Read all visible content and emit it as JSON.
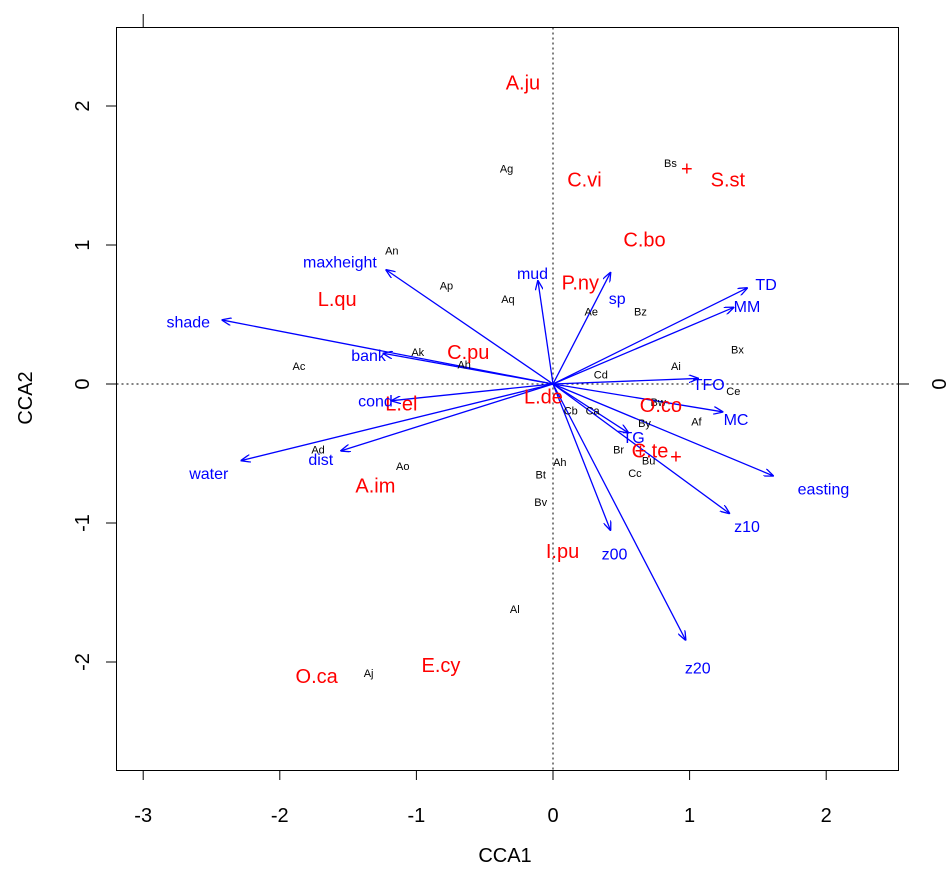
{
  "chart_data": {
    "type": "scatter",
    "subtype": "cca-triplot",
    "xlabel": "CCA1",
    "ylabel": "CCA2",
    "right_axis_tick": "0",
    "xlim": [
      -3.23,
      2.5
    ],
    "ylim": [
      -2.77,
      2.6
    ],
    "xticks": [
      -3,
      -2,
      -1,
      0,
      1,
      2
    ],
    "yticks": [
      -2,
      -1,
      0,
      1,
      2
    ],
    "zero_lines": true,
    "colors": {
      "sites": "#000000",
      "species": "#ff0000",
      "env": "#0000ff"
    },
    "sites": [
      {
        "label": "An",
        "x": -1.18,
        "y": 0.96
      },
      {
        "label": "Ap",
        "x": -0.78,
        "y": 0.71
      },
      {
        "label": "Aq",
        "x": -0.33,
        "y": 0.61
      },
      {
        "label": "Ag",
        "x": -0.34,
        "y": 1.55
      },
      {
        "label": "Bs",
        "x": 0.86,
        "y": 1.59
      },
      {
        "label": "Ae",
        "x": 0.28,
        "y": 0.52
      },
      {
        "label": "Bz",
        "x": 0.64,
        "y": 0.52
      },
      {
        "label": "Bx",
        "x": 1.35,
        "y": 0.25
      },
      {
        "label": "Ai",
        "x": 0.9,
        "y": 0.13
      },
      {
        "label": "Cd",
        "x": 0.35,
        "y": 0.07
      },
      {
        "label": "Ce",
        "x": 1.32,
        "y": -0.05
      },
      {
        "label": "Ac",
        "x": -1.86,
        "y": 0.13
      },
      {
        "label": "Ak",
        "x": -0.99,
        "y": 0.23
      },
      {
        "label": "Ah",
        "x": -0.65,
        "y": 0.14
      },
      {
        "label": "Cb",
        "x": 0.13,
        "y": -0.19
      },
      {
        "label": "Ca",
        "x": 0.29,
        "y": -0.19
      },
      {
        "label": "Bw",
        "x": 0.77,
        "y": -0.13
      },
      {
        "label": "Af",
        "x": 1.05,
        "y": -0.27
      },
      {
        "label": "By",
        "x": 0.67,
        "y": -0.28
      },
      {
        "label": "Br",
        "x": 0.48,
        "y": -0.47
      },
      {
        "label": "Bu",
        "x": 0.7,
        "y": -0.55
      },
      {
        "label": "Cc",
        "x": 0.6,
        "y": -0.64
      },
      {
        "label": "Ah",
        "x": 0.05,
        "y": -0.56
      },
      {
        "label": "Bt",
        "x": -0.09,
        "y": -0.65
      },
      {
        "label": "Bv",
        "x": -0.09,
        "y": -0.85
      },
      {
        "label": "Ad",
        "x": -1.72,
        "y": -0.47
      },
      {
        "label": "Ao",
        "x": -1.1,
        "y": -0.59
      },
      {
        "label": "Al",
        "x": -0.28,
        "y": -1.62
      },
      {
        "label": "Aj",
        "x": -1.35,
        "y": -2.08
      }
    ],
    "species": [
      {
        "label": "A.ju",
        "x": -0.22,
        "y": 2.17
      },
      {
        "label": "C.vi",
        "x": 0.23,
        "y": 1.47
      },
      {
        "label": "S.st",
        "x": 1.28,
        "y": 1.47
      },
      {
        "label": "C.bo",
        "x": 0.67,
        "y": 1.04
      },
      {
        "label": "P.ny",
        "x": 0.2,
        "y": 0.73
      },
      {
        "label": "L.qu",
        "x": -1.58,
        "y": 0.61
      },
      {
        "label": "C.pu",
        "x": -0.62,
        "y": 0.23
      },
      {
        "label": "L.de",
        "x": -0.07,
        "y": -0.09
      },
      {
        "label": "O.co",
        "x": 0.79,
        "y": -0.15
      },
      {
        "label": "L.el",
        "x": -1.11,
        "y": -0.14
      },
      {
        "label": "C.te",
        "x": 0.71,
        "y": -0.48
      },
      {
        "label": "A.im",
        "x": -1.3,
        "y": -0.73
      },
      {
        "label": "I.pu",
        "x": 0.07,
        "y": -1.2
      },
      {
        "label": "E.cy",
        "x": -0.82,
        "y": -2.02
      },
      {
        "label": "O.ca",
        "x": -1.73,
        "y": -2.1
      }
    ],
    "species_markers": [
      {
        "x": 0.98,
        "y": 1.55
      },
      {
        "x": 0.64,
        "y": -0.48
      },
      {
        "x": 0.9,
        "y": -0.52
      }
    ],
    "env_vectors": [
      {
        "label": "maxheight",
        "x": -1.22,
        "y": 0.82,
        "lx": -1.56,
        "ly": 0.88
      },
      {
        "label": "mud",
        "x": -0.11,
        "y": 0.74,
        "lx": -0.15,
        "ly": 0.8
      },
      {
        "label": "sp",
        "x": 0.42,
        "y": 0.8,
        "lx": 0.47,
        "ly": 0.62
      },
      {
        "label": "TD",
        "x": 1.42,
        "y": 0.69,
        "lx": 1.56,
        "ly": 0.72
      },
      {
        "label": "MM",
        "x": 1.32,
        "y": 0.55,
        "lx": 1.42,
        "ly": 0.56
      },
      {
        "label": "shade",
        "x": -2.42,
        "y": 0.46,
        "lx": -2.67,
        "ly": 0.45
      },
      {
        "label": "bank",
        "x": -1.24,
        "y": 0.22,
        "lx": -1.35,
        "ly": 0.21
      },
      {
        "label": "TFO",
        "x": 1.06,
        "y": 0.04,
        "lx": 1.14,
        "ly": 0.0
      },
      {
        "label": "cond",
        "x": -1.18,
        "y": -0.12,
        "lx": -1.3,
        "ly": -0.12
      },
      {
        "label": "MC",
        "x": 1.24,
        "y": -0.2,
        "lx": 1.34,
        "ly": -0.25
      },
      {
        "label": "TG",
        "x": 0.55,
        "y": -0.35,
        "lx": 0.59,
        "ly": -0.38
      },
      {
        "label": "easting",
        "x": 1.61,
        "y": -0.66,
        "lx": 1.98,
        "ly": -0.75
      },
      {
        "label": "dist",
        "x": -1.55,
        "y": -0.48,
        "lx": -1.7,
        "ly": -0.54
      },
      {
        "label": "water",
        "x": -2.28,
        "y": -0.55,
        "lx": -2.52,
        "ly": -0.64
      },
      {
        "label": "z10",
        "x": 1.29,
        "y": -0.93,
        "lx": 1.42,
        "ly": -1.02
      },
      {
        "label": "z00",
        "x": 0.42,
        "y": -1.05,
        "lx": 0.45,
        "ly": -1.22
      },
      {
        "label": "z20",
        "x": 0.97,
        "y": -1.84,
        "lx": 1.06,
        "ly": -2.04
      }
    ]
  }
}
